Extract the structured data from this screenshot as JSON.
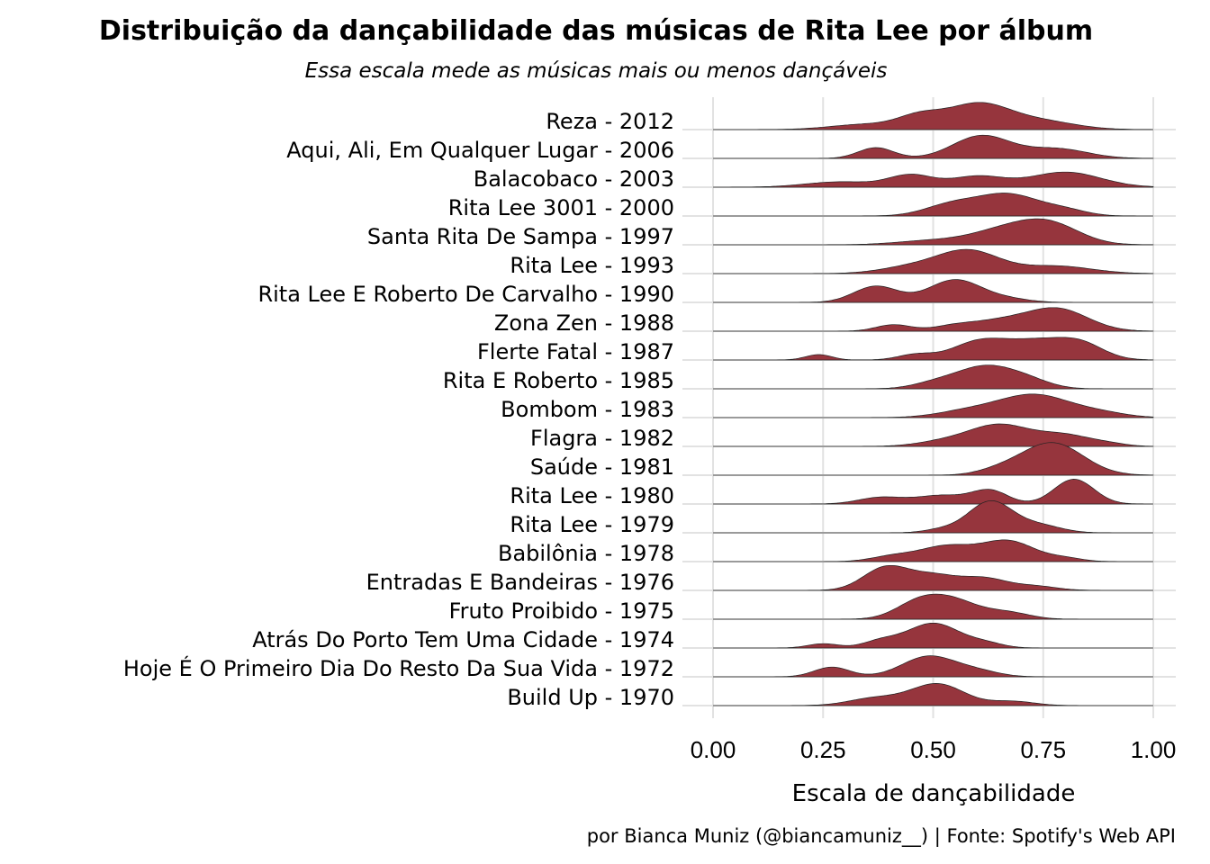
{
  "chart_data": {
    "type": "ridgeline",
    "title": "Distribuição da dançabilidade das músicas de Rita Lee por álbum",
    "subtitle": "Essa escala mede as músicas mais ou menos dançáveis",
    "xlabel": "Escala de dançabilidade",
    "caption": "por Bianca Muniz (@biancamuniz__) | Fonte: Spotify's Web API",
    "xlim": [
      0,
      1
    ],
    "xticks": [
      0,
      0.25,
      0.5,
      0.75,
      1
    ],
    "xtick_labels": [
      "0.00",
      "0.25",
      "0.50",
      "0.75",
      "1.00"
    ],
    "fill_color": "#96353d",
    "grid": true,
    "categories": [
      {
        "label": "Reza - 2012",
        "peaks": [
          [
            0.23,
            0,
            0.05
          ],
          [
            0.35,
            0.25,
            0.08
          ],
          [
            0.47,
            0.55,
            0.05
          ],
          [
            0.6,
            1.15,
            0.07
          ],
          [
            0.74,
            0.4,
            0.08
          ]
        ]
      },
      {
        "label": "Aqui, Ali, Em Qualquer Lugar - 2006",
        "peaks": [
          [
            0.37,
            0.5,
            0.04
          ],
          [
            0.61,
            1.05,
            0.065
          ],
          [
            0.78,
            0.45,
            0.07
          ]
        ]
      },
      {
        "label": "Balacobaco - 2003",
        "peaks": [
          [
            0.29,
            0.25,
            0.08
          ],
          [
            0.45,
            0.55,
            0.05
          ],
          [
            0.6,
            0.5,
            0.06
          ],
          [
            0.8,
            0.7,
            0.08
          ]
        ]
      },
      {
        "label": "Rita Lee 3001 - 2000",
        "peaks": [
          [
            0.54,
            0.5,
            0.06
          ],
          [
            0.67,
            1.0,
            0.07
          ],
          [
            0.8,
            0.25,
            0.05
          ]
        ]
      },
      {
        "label": "Santa Rita De Sampa - 1997",
        "peaks": [
          [
            0.5,
            0.2,
            0.08
          ],
          [
            0.65,
            0.55,
            0.07
          ],
          [
            0.76,
            1.0,
            0.07
          ]
        ]
      },
      {
        "label": "Rita Lee - 1993",
        "peaks": [
          [
            0.45,
            0.3,
            0.07
          ],
          [
            0.58,
            1.05,
            0.07
          ],
          [
            0.78,
            0.35,
            0.08
          ]
        ]
      },
      {
        "label": "Rita Lee E Roberto De Carvalho - 1990",
        "peaks": [
          [
            0.37,
            0.75,
            0.05
          ],
          [
            0.55,
            1.05,
            0.06
          ],
          [
            0.67,
            0.15,
            0.05
          ]
        ]
      },
      {
        "label": "Zona Zen - 1988",
        "peaks": [
          [
            0.41,
            0.3,
            0.04
          ],
          [
            0.55,
            0.25,
            0.05
          ],
          [
            0.65,
            0.4,
            0.06
          ],
          [
            0.78,
            1.05,
            0.07
          ]
        ]
      },
      {
        "label": "Flerte Fatal - 1987",
        "peaks": [
          [
            0.24,
            0.25,
            0.03
          ],
          [
            0.46,
            0.25,
            0.04
          ],
          [
            0.6,
            0.75,
            0.06
          ],
          [
            0.74,
            0.9,
            0.08
          ],
          [
            0.84,
            0.5,
            0.05
          ]
        ]
      },
      {
        "label": "Rita E Roberto - 1985",
        "peaks": [
          [
            0.5,
            0.2,
            0.05
          ],
          [
            0.62,
            1.05,
            0.07
          ],
          [
            0.72,
            0.25,
            0.05
          ]
        ]
      },
      {
        "label": "Bombom - 1983",
        "peaks": [
          [
            0.58,
            0.3,
            0.07
          ],
          [
            0.73,
            1.05,
            0.08
          ],
          [
            0.88,
            0.2,
            0.06
          ]
        ]
      },
      {
        "label": "Flagra - 1982",
        "peaks": [
          [
            0.52,
            0.2,
            0.06
          ],
          [
            0.65,
            1.0,
            0.07
          ],
          [
            0.8,
            0.5,
            0.06
          ],
          [
            0.9,
            0.1,
            0.04
          ]
        ]
      },
      {
        "label": "Saúde - 1981",
        "peaks": [
          [
            0.65,
            0.2,
            0.05
          ],
          [
            0.77,
            1.5,
            0.07
          ]
        ]
      },
      {
        "label": "Rita Lee - 1980",
        "peaks": [
          [
            0.38,
            0.3,
            0.05
          ],
          [
            0.52,
            0.4,
            0.06
          ],
          [
            0.63,
            0.6,
            0.04
          ],
          [
            0.82,
            1.15,
            0.045
          ]
        ]
      },
      {
        "label": "Rita Lee - 1979",
        "peaks": [
          [
            0.63,
            1.45,
            0.05
          ],
          [
            0.74,
            0.35,
            0.05
          ],
          [
            0.52,
            0.15,
            0.04
          ]
        ]
      },
      {
        "label": "Babilônia - 1978",
        "peaks": [
          [
            0.41,
            0.25,
            0.05
          ],
          [
            0.53,
            0.7,
            0.06
          ],
          [
            0.67,
            0.95,
            0.06
          ],
          [
            0.8,
            0.15,
            0.04
          ]
        ]
      },
      {
        "label": "Entradas E Bandeiras - 1976",
        "peaks": [
          [
            0.39,
            1.0,
            0.05
          ],
          [
            0.5,
            0.7,
            0.06
          ],
          [
            0.62,
            0.5,
            0.05
          ],
          [
            0.73,
            0.2,
            0.05
          ]
        ]
      },
      {
        "label": "Fruto Proibido - 1975",
        "peaks": [
          [
            0.46,
            0.6,
            0.05
          ],
          [
            0.54,
            0.9,
            0.06
          ],
          [
            0.67,
            0.3,
            0.05
          ]
        ]
      },
      {
        "label": "Atrás Do Porto Tem Uma Cidade - 1974",
        "peaks": [
          [
            0.25,
            0.2,
            0.035
          ],
          [
            0.38,
            0.3,
            0.04
          ],
          [
            0.5,
            1.15,
            0.06
          ],
          [
            0.62,
            0.2,
            0.04
          ]
        ]
      },
      {
        "label": "Hoje É O Primeiro Dia Do Resto Da Sua Vida - 1972",
        "peaks": [
          [
            0.27,
            0.45,
            0.04
          ],
          [
            0.49,
            0.95,
            0.06
          ],
          [
            0.6,
            0.25,
            0.05
          ]
        ]
      },
      {
        "label": "Build Up - 1970",
        "peaks": [
          [
            0.37,
            0.35,
            0.06
          ],
          [
            0.51,
            1.0,
            0.06
          ],
          [
            0.68,
            0.2,
            0.05
          ]
        ]
      }
    ]
  }
}
